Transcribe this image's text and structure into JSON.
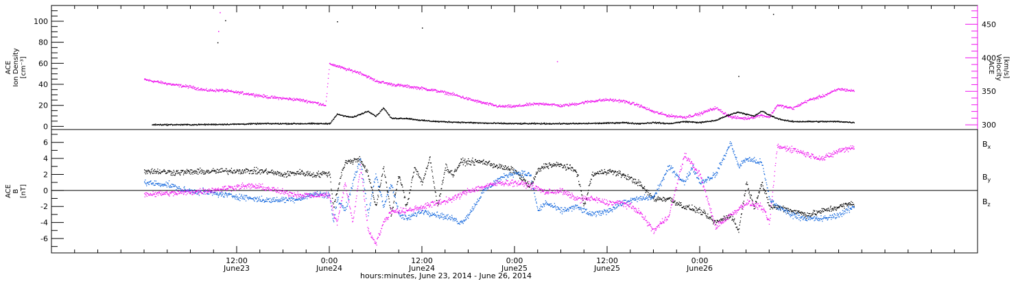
{
  "chart_data": [
    {
      "type": "scatter",
      "ylabel_lines": [
        "ACE",
        "Ion Density",
        "[cm⁻³]"
      ],
      "ylabel_right_lines": [
        "ACE",
        "Velocity",
        "[km/s]"
      ],
      "y_ticks": [
        "0",
        "20",
        "40",
        "60",
        "80",
        "100"
      ],
      "y2_ticks": [
        "300",
        "350",
        "400",
        "450"
      ],
      "ylim": [
        -3,
        115
      ],
      "y2lim": [
        293,
        478
      ],
      "colors": {
        "density": "#000000",
        "velocity": "#ee11ee"
      },
      "density_points": [
        [
          1,
          2
        ],
        [
          6,
          2
        ],
        [
          12,
          2.5
        ],
        [
          15,
          3
        ],
        [
          20,
          3
        ],
        [
          24,
          3
        ],
        [
          25,
          12
        ],
        [
          26,
          10
        ],
        [
          27,
          9
        ],
        [
          28,
          12
        ],
        [
          29,
          15
        ],
        [
          30,
          10
        ],
        [
          31,
          18
        ],
        [
          32,
          8
        ],
        [
          34,
          8
        ],
        [
          36,
          6
        ],
        [
          38,
          5
        ],
        [
          40,
          4.5
        ],
        [
          44,
          3.5
        ],
        [
          48,
          3
        ],
        [
          52,
          3
        ],
        [
          56,
          3
        ],
        [
          60,
          3.5
        ],
        [
          62,
          4
        ],
        [
          64,
          3
        ],
        [
          66,
          4
        ],
        [
          68,
          3
        ],
        [
          70,
          5
        ],
        [
          72,
          4
        ],
        [
          74,
          6
        ],
        [
          75,
          9
        ],
        [
          76,
          12
        ],
        [
          77,
          14
        ],
        [
          78,
          12
        ],
        [
          79,
          10
        ],
        [
          80,
          15
        ],
        [
          81,
          11
        ],
        [
          82,
          8
        ],
        [
          83,
          6
        ],
        [
          84,
          5
        ],
        [
          86,
          5
        ],
        [
          88,
          5
        ],
        [
          90,
          5
        ],
        [
          92,
          4
        ]
      ],
      "density_spikes": [
        [
          9.5,
          80
        ],
        [
          10.5,
          101
        ],
        [
          25,
          100
        ],
        [
          36,
          94
        ],
        [
          81.5,
          107
        ],
        [
          77,
          48
        ]
      ],
      "velocity_points": [
        [
          0,
          368
        ],
        [
          2,
          364
        ],
        [
          4,
          360
        ],
        [
          6,
          357
        ],
        [
          8,
          352
        ],
        [
          10,
          352
        ],
        [
          12,
          349
        ],
        [
          14,
          346
        ],
        [
          16,
          342
        ],
        [
          18,
          340
        ],
        [
          20,
          338
        ],
        [
          22,
          334
        ],
        [
          23.5,
          330
        ],
        [
          24,
          392
        ],
        [
          26,
          384
        ],
        [
          28,
          378
        ],
        [
          30,
          366
        ],
        [
          32,
          361
        ],
        [
          34,
          358
        ],
        [
          36,
          355
        ],
        [
          38,
          351
        ],
        [
          40,
          346
        ],
        [
          42,
          339
        ],
        [
          44,
          333
        ],
        [
          46,
          328
        ],
        [
          48,
          328
        ],
        [
          50,
          331
        ],
        [
          52,
          332
        ],
        [
          54,
          329
        ],
        [
          56,
          332
        ],
        [
          58,
          336
        ],
        [
          60,
          338
        ],
        [
          62,
          336
        ],
        [
          64,
          330
        ],
        [
          66,
          320
        ],
        [
          68,
          314
        ],
        [
          70,
          312
        ],
        [
          72,
          317
        ],
        [
          74,
          326
        ],
        [
          76,
          312
        ],
        [
          78,
          310
        ],
        [
          80,
          315
        ],
        [
          81,
          312
        ],
        [
          82,
          330
        ],
        [
          84,
          325
        ],
        [
          86,
          337
        ],
        [
          88,
          344
        ],
        [
          90,
          354
        ],
        [
          92,
          351
        ]
      ],
      "velocity_spikes": [
        [
          9.8,
          468
        ],
        [
          9.6,
          440
        ],
        [
          53.5,
          395
        ]
      ]
    },
    {
      "type": "scatter",
      "ylabel_lines": [
        "ACE",
        "B",
        "[nT]"
      ],
      "y_ticks": [
        "-6",
        "-4",
        "-2",
        "0",
        "2",
        "4",
        "6"
      ],
      "ylim": [
        -7.8,
        7.6
      ],
      "legend": [
        "B",
        "B",
        "B"
      ],
      "legend_subscripts": [
        "x",
        "y",
        "z"
      ],
      "legend_position": "right",
      "colors": {
        "bx": "#000000",
        "by": "#1166dd",
        "bz": "#ee11ee",
        "zero_line": "#000000"
      },
      "series": [
        {
          "name": "B",
          "points": [
            [
              0,
              2.5
            ],
            [
              4,
              2.3
            ],
            [
              8,
              2.4
            ],
            [
              12,
              2.5
            ],
            [
              16,
              2.4
            ],
            [
              18,
              2.0
            ],
            [
              20,
              2.3
            ],
            [
              22,
              2.0
            ],
            [
              24,
              2.2
            ],
            [
              24.5,
              -2
            ],
            [
              25.5,
              2
            ],
            [
              26,
              3.5
            ],
            [
              28,
              4
            ],
            [
              29,
              2
            ],
            [
              30,
              -2
            ],
            [
              31,
              3
            ],
            [
              32,
              -3
            ],
            [
              33,
              2
            ],
            [
              34,
              -2
            ],
            [
              35,
              3
            ],
            [
              36,
              1
            ],
            [
              37,
              4
            ],
            [
              38,
              -2
            ],
            [
              39,
              3
            ],
            [
              40,
              2
            ],
            [
              41,
              3.6
            ],
            [
              44,
              3.6
            ],
            [
              46,
              3
            ],
            [
              48,
              2.5
            ],
            [
              50,
              0.5
            ],
            [
              51,
              2.5
            ],
            [
              52,
              3.2
            ],
            [
              54,
              3.2
            ],
            [
              56,
              2.5
            ],
            [
              57,
              -2
            ],
            [
              58,
              2
            ],
            [
              60,
              2.5
            ],
            [
              62,
              2
            ],
            [
              64,
              1
            ],
            [
              66,
              -1
            ],
            [
              68,
              -1
            ],
            [
              70,
              -2
            ],
            [
              72,
              -2.5
            ],
            [
              74,
              -4
            ],
            [
              76,
              -3
            ],
            [
              77,
              -5
            ],
            [
              78,
              1
            ],
            [
              79,
              -2
            ],
            [
              80,
              1
            ],
            [
              81,
              -2
            ],
            [
              82,
              -2
            ],
            [
              84,
              -2.5
            ],
            [
              86,
              -3
            ],
            [
              88,
              -2.5
            ],
            [
              90,
              -2
            ],
            [
              92,
              -1.5
            ]
          ]
        },
        {
          "name": "B",
          "points": [
            [
              0,
              1.0
            ],
            [
              3,
              0.8
            ],
            [
              5,
              0.1
            ],
            [
              8,
              -0.2
            ],
            [
              12,
              -0.7
            ],
            [
              16,
              -1.2
            ],
            [
              20,
              -1.0
            ],
            [
              22,
              -0.4
            ],
            [
              24,
              -0.5
            ],
            [
              24.5,
              -4
            ],
            [
              25,
              -1
            ],
            [
              26,
              -2.5
            ],
            [
              27,
              1
            ],
            [
              28,
              4
            ],
            [
              29,
              -3
            ],
            [
              30,
              2
            ],
            [
              31,
              -2
            ],
            [
              32,
              1
            ],
            [
              33,
              -3
            ],
            [
              34,
              -3.5
            ],
            [
              35,
              -3
            ],
            [
              36,
              -2.5
            ],
            [
              38,
              -3
            ],
            [
              40,
              -3.5
            ],
            [
              41,
              -4
            ],
            [
              42,
              -3
            ],
            [
              44,
              0
            ],
            [
              46,
              1.5
            ],
            [
              48,
              2.3
            ],
            [
              50,
              2
            ],
            [
              51,
              -2.5
            ],
            [
              52,
              -1.5
            ],
            [
              54,
              -2.5
            ],
            [
              56,
              -2
            ],
            [
              58,
              -3
            ],
            [
              60,
              -2.5
            ],
            [
              62,
              -1.5
            ],
            [
              64,
              -1
            ],
            [
              66,
              -0.8
            ],
            [
              68,
              3
            ],
            [
              70,
              1
            ],
            [
              71,
              3
            ],
            [
              72,
              1
            ],
            [
              74,
              2
            ],
            [
              76,
              6
            ],
            [
              77,
              3
            ],
            [
              78,
              4
            ],
            [
              80,
              3.5
            ],
            [
              81,
              -1
            ],
            [
              82,
              -2
            ],
            [
              84,
              -3
            ],
            [
              86,
              -3.5
            ],
            [
              88,
              -3.5
            ],
            [
              90,
              -3
            ],
            [
              92,
              -2
            ]
          ]
        },
        {
          "name": "B",
          "points": [
            [
              0,
              -0.4
            ],
            [
              4,
              -0.3
            ],
            [
              8,
              0
            ],
            [
              12,
              0.5
            ],
            [
              14,
              0.6
            ],
            [
              16,
              0.3
            ],
            [
              18,
              -0.2
            ],
            [
              20,
              -0.5
            ],
            [
              22,
              -0.6
            ],
            [
              24,
              -0.5
            ],
            [
              24.5,
              -3
            ],
            [
              25,
              -4
            ],
            [
              26,
              1
            ],
            [
              27,
              -4
            ],
            [
              28,
              3
            ],
            [
              29,
              -5
            ],
            [
              30,
              -6.5
            ],
            [
              31,
              -4
            ],
            [
              32,
              -2.5
            ],
            [
              34,
              -2.5
            ],
            [
              36,
              -2
            ],
            [
              38,
              -1.5
            ],
            [
              40,
              -1
            ],
            [
              42,
              0
            ],
            [
              44,
              0.5
            ],
            [
              46,
              1
            ],
            [
              48,
              1
            ],
            [
              50,
              0.7
            ],
            [
              52,
              -0.2
            ],
            [
              54,
              0
            ],
            [
              56,
              -1
            ],
            [
              58,
              -1
            ],
            [
              60,
              -1.5
            ],
            [
              62,
              -1.5
            ],
            [
              64,
              -2.5
            ],
            [
              66,
              -5
            ],
            [
              67,
              -4
            ],
            [
              68,
              -3
            ],
            [
              70,
              4.5
            ],
            [
              72,
              2
            ],
            [
              74,
              -4.5
            ],
            [
              76,
              -3
            ],
            [
              78,
              -1.5
            ],
            [
              80,
              -2
            ],
            [
              81,
              -4
            ],
            [
              82,
              5.5
            ],
            [
              84,
              5.2
            ],
            [
              86,
              4.5
            ],
            [
              88,
              4
            ],
            [
              90,
              5
            ],
            [
              92,
              5.5
            ]
          ]
        }
      ]
    }
  ],
  "x_axis": {
    "xlim": [
      -12,
      108
    ],
    "major_ticks": [
      {
        "hour": 12,
        "line1": "12:00",
        "line2": "June23"
      },
      {
        "hour": 24,
        "line1": "0:00",
        "line2": "June24"
      },
      {
        "hour": 36,
        "line1": "12:00",
        "line2": "June24"
      },
      {
        "hour": 48,
        "line1": "0:00",
        "line2": "June25"
      },
      {
        "hour": 60,
        "line1": "12:00",
        "line2": "June25"
      },
      {
        "hour": 72,
        "line1": "0:00",
        "line2": "June26"
      }
    ],
    "xlabel": "hours:minutes, June 23, 2014 - June 26, 2014"
  }
}
